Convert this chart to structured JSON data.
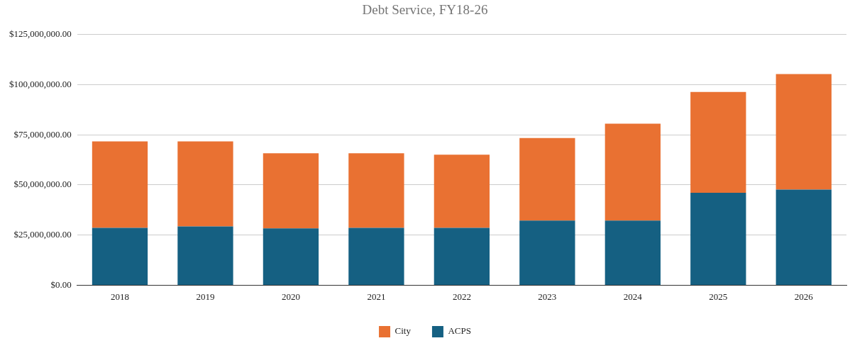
{
  "chart_data": {
    "type": "bar",
    "title": "Debt Service, FY18-26",
    "stacked": true,
    "categories": [
      "2018",
      "2019",
      "2020",
      "2021",
      "2022",
      "2023",
      "2024",
      "2025",
      "2026"
    ],
    "series": [
      {
        "name": "ACPS",
        "color": "#156082",
        "values": [
          28600000,
          29300000,
          28300000,
          28600000,
          28600000,
          32200000,
          32200000,
          46100000,
          47700000
        ]
      },
      {
        "name": "City",
        "color": "#e97132",
        "values": [
          43100000,
          42400000,
          37500000,
          37200000,
          36500000,
          41200000,
          48400000,
          50300000,
          57600000
        ]
      }
    ],
    "ylim": [
      0,
      125000000
    ],
    "yticks": [
      {
        "value": 0,
        "label": "$0.00"
      },
      {
        "value": 25000000,
        "label": "$25,000,000.00"
      },
      {
        "value": 50000000,
        "label": "$50,000,000.00"
      },
      {
        "value": 75000000,
        "label": "$75,000,000.00"
      },
      {
        "value": 100000000,
        "label": "$100,000,000.00"
      },
      {
        "value": 125000000,
        "label": "$125,000,000.00"
      }
    ],
    "grid": "y",
    "legend": "bottom"
  }
}
